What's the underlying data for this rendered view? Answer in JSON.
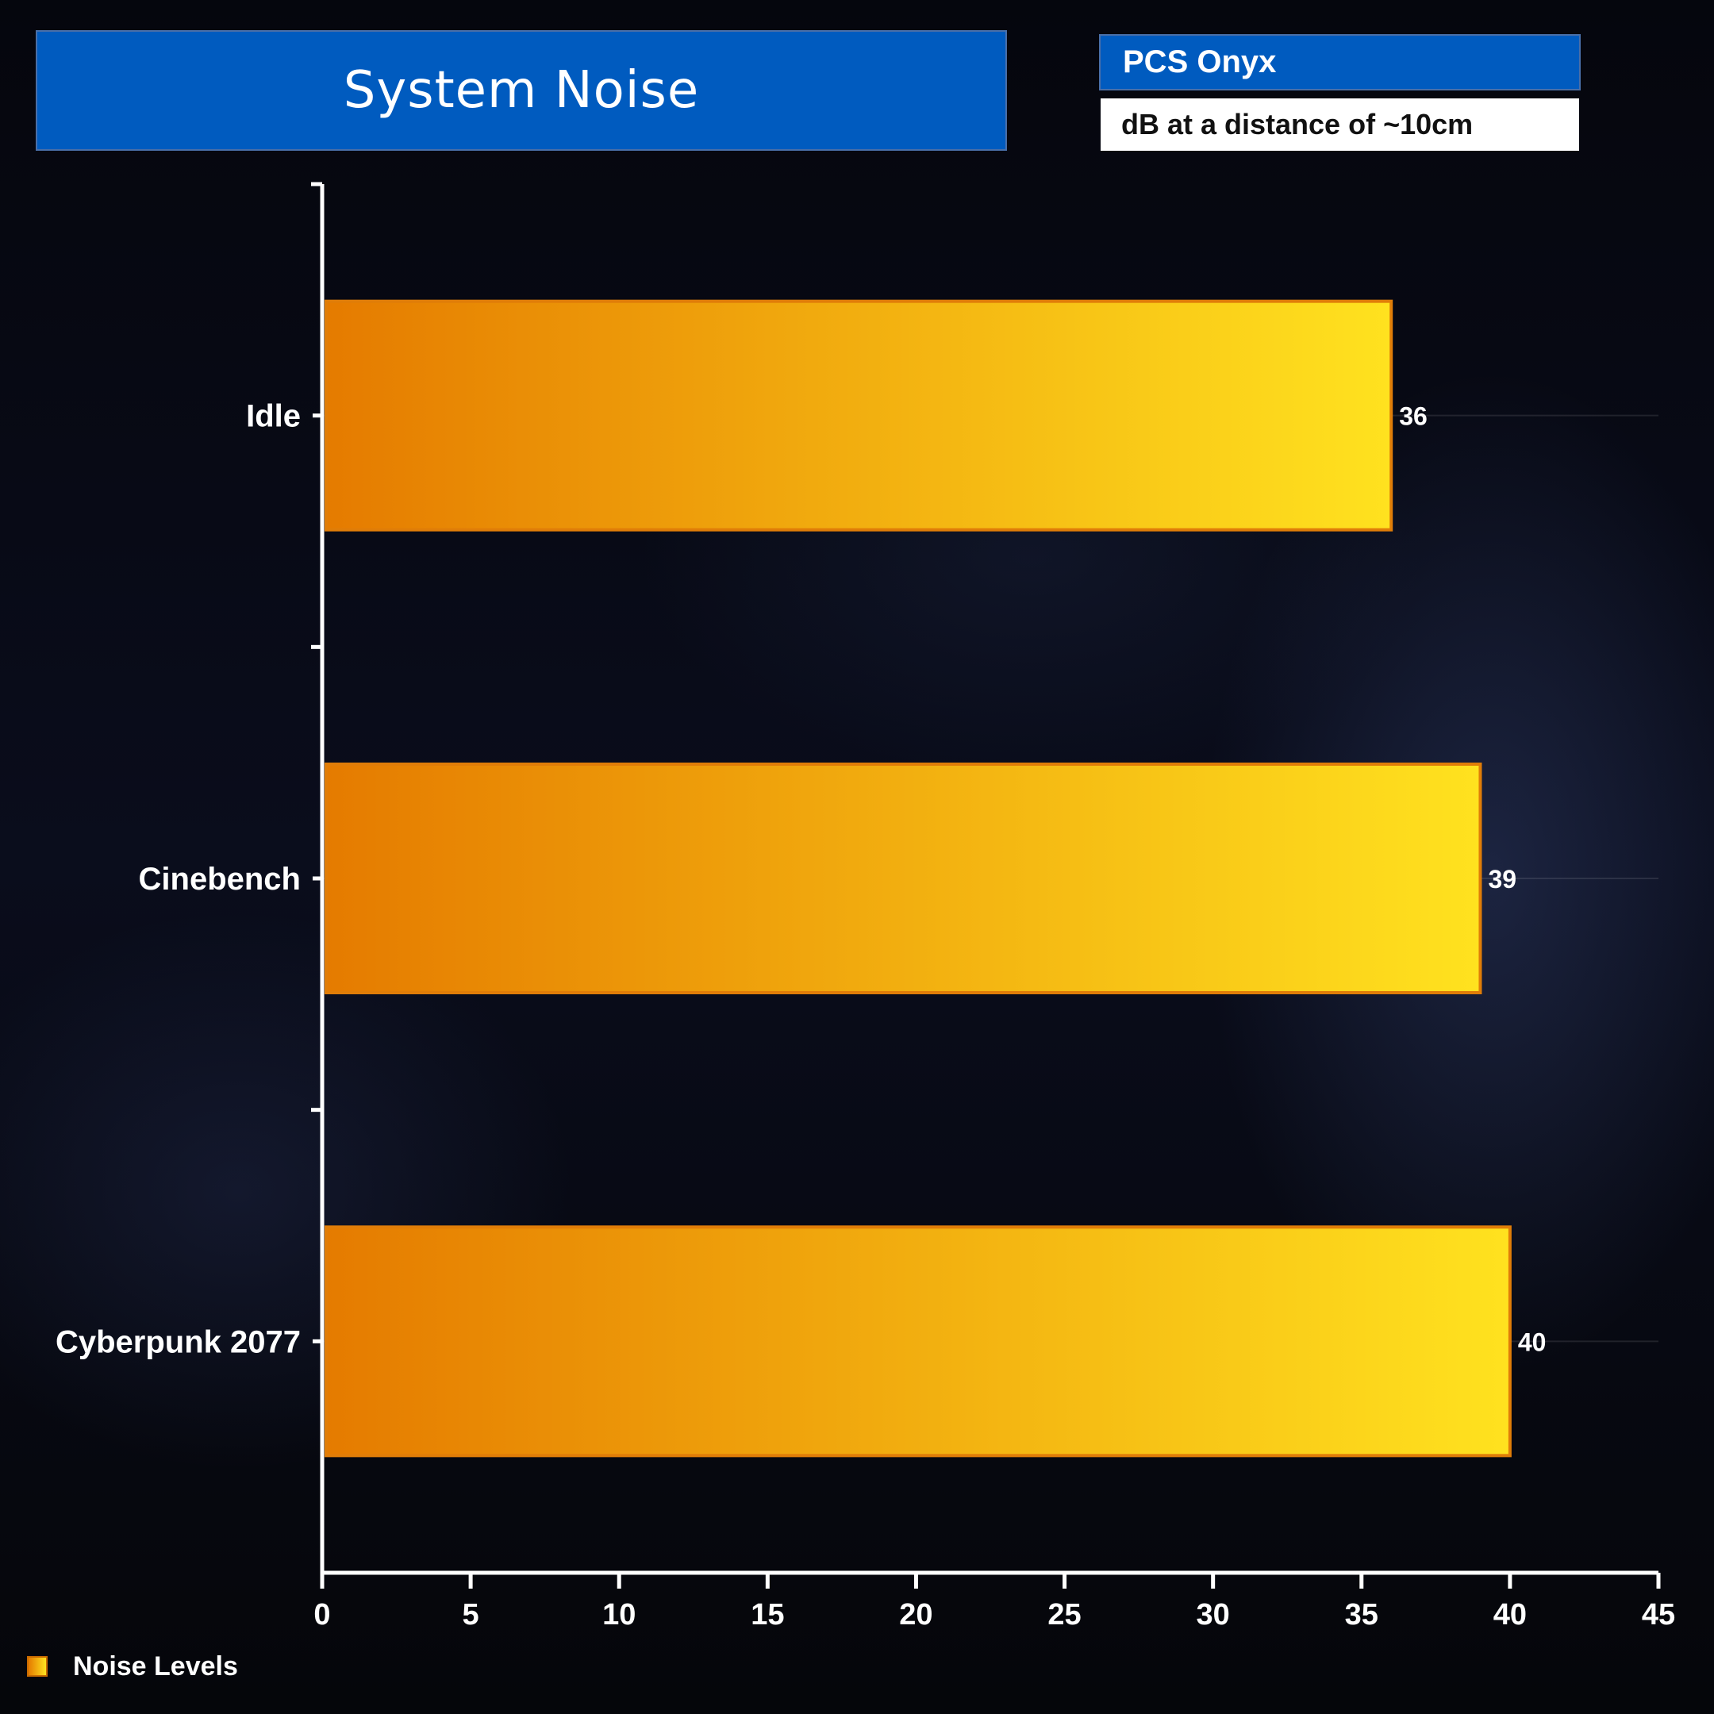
{
  "header": {
    "title": "System Noise",
    "subtitle": "PCS Onyx",
    "unit_note": "dB at a distance of ~10cm"
  },
  "legend": {
    "label": "Noise Levels"
  },
  "colors": {
    "bar_start": "#e57b00",
    "bar_end": "#ffe21f",
    "bar_border": "#e07d08",
    "title_bg": "#005bbf"
  },
  "chart_data": {
    "type": "bar",
    "orientation": "horizontal",
    "title": "System Noise",
    "categories": [
      "Idle",
      "Cinebench",
      "Cyberpunk 2077"
    ],
    "series": [
      {
        "name": "Noise Levels",
        "values": [
          36,
          39,
          40
        ]
      }
    ],
    "xlim": [
      0,
      45
    ],
    "xticks": [
      0,
      5,
      10,
      15,
      20,
      25,
      30,
      35,
      40,
      45
    ],
    "data_labels": [
      "36",
      "39",
      "40"
    ],
    "grid": false,
    "legend_position": "bottom-left"
  }
}
